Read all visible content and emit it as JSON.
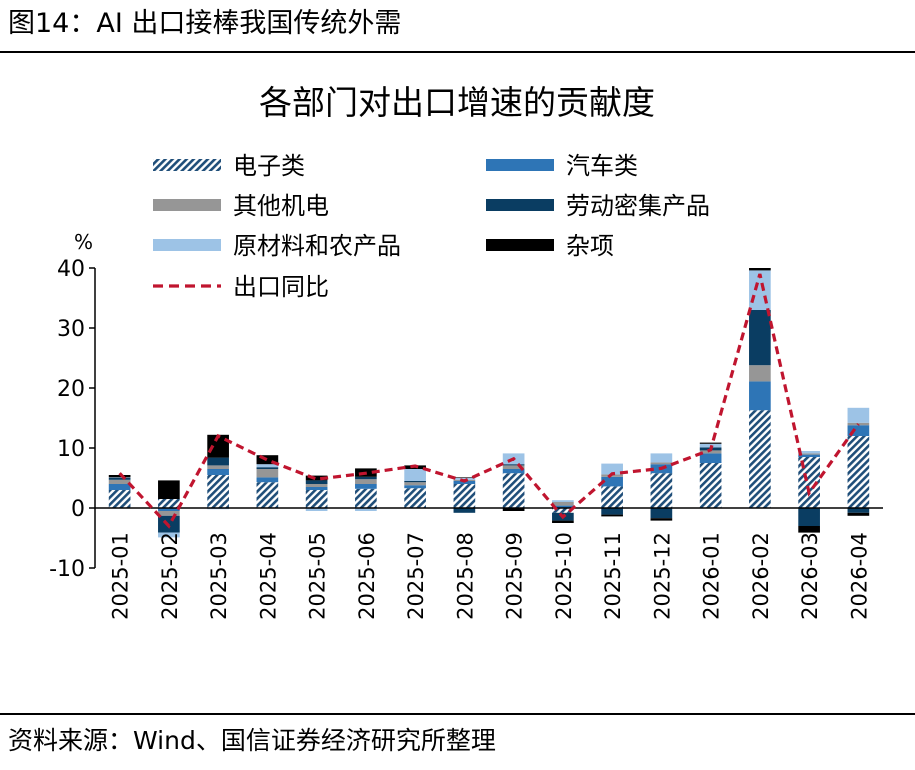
{
  "figure_caption": "图14：AI 出口接棒我国传统外需",
  "source_note": "资料来源：Wind、国信证券经济研究所整理",
  "colors": {
    "electronics": "#1f4e79",
    "auto": "#2e75b6",
    "machinery": "#969696",
    "labor": "#0a3d62",
    "raw": "#9dc3e6",
    "misc": "#000000",
    "export_line": "#c0152f"
  },
  "chart_data": {
    "type": "bar",
    "stacked": true,
    "title": "各部门对出口增速的贡献度",
    "unit_label": "%",
    "ylim": [
      -10,
      40
    ],
    "yticks": [
      -10,
      0,
      10,
      20,
      30,
      40
    ],
    "grid": false,
    "legend_placement": "top",
    "categories": [
      "2025-01",
      "2025-02",
      "2025-03",
      "2025-04",
      "2025-05",
      "2025-06",
      "2025-07",
      "2025-08",
      "2025-09",
      "2025-10",
      "2025-11",
      "2025-12",
      "2026-01",
      "2026-02",
      "2026-03",
      "2026-04"
    ],
    "series": [
      {
        "name": "电子类",
        "key": "electronics",
        "pattern": "hatch",
        "values": [
          3.0,
          1.5,
          5.5,
          4.3,
          3.0,
          3.2,
          3.3,
          4.0,
          5.8,
          -0.8,
          3.6,
          5.8,
          7.5,
          16.3,
          8.5,
          12.0
        ]
      },
      {
        "name": "汽车类",
        "key": "auto",
        "values": [
          1.0,
          -0.5,
          1.0,
          0.8,
          0.5,
          0.8,
          0.5,
          0.5,
          0.7,
          0.4,
          1.6,
          1.5,
          1.6,
          4.8,
          0.4,
          1.8
        ]
      },
      {
        "name": "其他机电",
        "key": "machinery",
        "values": [
          0.7,
          -0.8,
          0.6,
          1.4,
          0.5,
          0.8,
          0.5,
          0.2,
          0.6,
          0.6,
          0.4,
          0.3,
          0.5,
          2.7,
          0.2,
          0.4
        ]
      },
      {
        "name": "劳动密集产品",
        "key": "labor",
        "values": [
          0.3,
          -2.8,
          1.3,
          0.3,
          0.6,
          0.4,
          0.2,
          -0.8,
          0.2,
          -1.3,
          -1.1,
          -1.7,
          0.5,
          9.2,
          -3.0,
          -0.8
        ]
      },
      {
        "name": "原材料和农产品",
        "key": "raw",
        "values": [
          0.1,
          -0.8,
          -0.2,
          0.5,
          -0.5,
          -0.5,
          2.0,
          0.3,
          1.8,
          0.3,
          1.8,
          1.5,
          0.6,
          6.6,
          0.4,
          2.5
        ]
      },
      {
        "name": "杂项",
        "key": "misc",
        "values": [
          0.4,
          3.1,
          3.8,
          1.5,
          0.8,
          1.4,
          0.6,
          0.1,
          -0.5,
          -0.4,
          -0.3,
          -0.4,
          0.2,
          0.4,
          -1.1,
          -0.5
        ]
      }
    ],
    "line": {
      "name": "出口同比",
      "key": "export_line",
      "values": [
        5.8,
        -3.0,
        12.0,
        8.0,
        4.8,
        5.8,
        7.0,
        4.5,
        8.2,
        -1.5,
        5.7,
        6.6,
        9.7,
        39.0,
        2.5,
        14.0
      ]
    }
  }
}
